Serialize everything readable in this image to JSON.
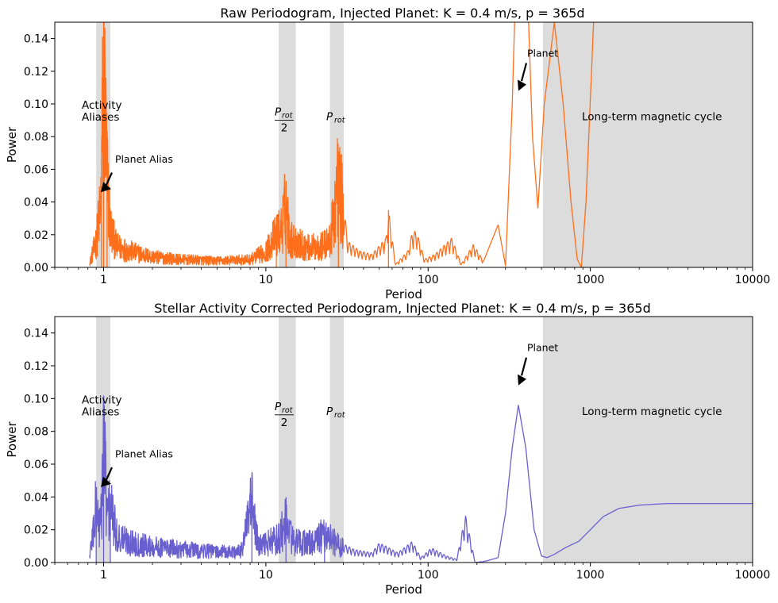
{
  "chart_data": [
    {
      "type": "line",
      "title": "Raw Periodogram, Injected Planet: K = 0.4 m/s, p = 365d",
      "xlabel": "Period",
      "ylabel": "Power",
      "xscale": "log",
      "xlim": [
        0.5,
        10000
      ],
      "ylim": [
        0,
        0.15
      ],
      "grid": false,
      "xticks": [
        "1",
        "10",
        "100",
        "1000",
        "10000"
      ],
      "yticks": [
        "0.00",
        "0.02",
        "0.04",
        "0.06",
        "0.08",
        "0.10",
        "0.12",
        "0.14"
      ],
      "color": "#ff6e1a",
      "shaded_bands": [
        [
          0.9,
          1.1
        ],
        [
          12,
          15.3
        ],
        [
          24.8,
          30.2
        ],
        [
          510,
          10000
        ]
      ],
      "annotations": {
        "activity_aliases": [
          "Activity",
          "Aliases"
        ],
        "p_rot_half": {
          "p": "P",
          "rot": "rot",
          "den": "2"
        },
        "p_rot": {
          "p": "P",
          "rot": "rot"
        },
        "planet": "Planet",
        "planet_alias": "Planet Alias",
        "long_term": "Long-term magnetic cycle"
      },
      "series": [
        {
          "x": [
            0.82,
            0.9,
            0.96,
            1.0,
            1.05,
            1.1,
            1.2,
            1.4,
            1.7,
            2.0,
            3.0,
            5.0,
            8.0,
            10.0,
            11.0,
            12.6,
            13.3,
            14.0,
            18.0,
            22.0,
            25.0,
            28.0,
            32.0,
            38.0,
            45.0,
            55.0,
            57.0,
            63.0,
            75.0,
            80.0,
            85.0,
            95.0,
            110.0,
            140.0,
            160.0,
            190.0,
            220.0,
            270.0,
            300.0,
            330.0,
            365.0,
            400.0,
            440.0,
            475.0,
            520.0,
            600.0,
            680.0,
            760.0,
            830.0,
            880.0,
            940.0,
            1100.0
          ],
          "y": [
            0.003,
            0.02,
            0.047,
            0.15,
            0.069,
            0.03,
            0.016,
            0.013,
            0.01,
            0.008,
            0.006,
            0.005,
            0.006,
            0.012,
            0.021,
            0.03,
            0.05,
            0.022,
            0.015,
            0.016,
            0.02,
            0.068,
            0.016,
            0.01,
            0.008,
            0.018,
            0.035,
            0.002,
            0.01,
            0.022,
            0.022,
            0.005,
            0.008,
            0.018,
            0.002,
            0.014,
            0.004,
            0.026,
            0.001,
            0.1,
            0.25,
            0.2,
            0.08,
            0.036,
            0.1,
            0.15,
            0.1,
            0.04,
            0.005,
            0.0,
            0.04,
            0.2
          ]
        }
      ]
    },
    {
      "type": "line",
      "title": "Stellar Activity Corrected Periodogram, Injected Planet: K = 0.4 m/s, p = 365d",
      "xlabel": "Period",
      "ylabel": "Power",
      "xscale": "log",
      "xlim": [
        0.5,
        10000
      ],
      "ylim": [
        0,
        0.15
      ],
      "grid": false,
      "xticks": [
        "1",
        "10",
        "100",
        "1000",
        "10000"
      ],
      "yticks": [
        "0.00",
        "0.02",
        "0.04",
        "0.06",
        "0.08",
        "0.10",
        "0.12",
        "0.14"
      ],
      "color": "#6a5fcf",
      "shaded_bands": [
        [
          0.9,
          1.1
        ],
        [
          12,
          15.3
        ],
        [
          24.8,
          30.2
        ],
        [
          510,
          10000
        ]
      ],
      "annotations": {
        "activity_aliases": [
          "Activity",
          "Aliases"
        ],
        "p_rot_half": {
          "p": "P",
          "rot": "rot",
          "den": "2"
        },
        "p_rot": {
          "p": "P",
          "rot": "rot"
        },
        "planet": "Planet",
        "planet_alias": "Planet Alias",
        "long_term": "Long-term magnetic cycle"
      },
      "series": [
        {
          "x": [
            0.82,
            0.9,
            0.96,
            1.0,
            1.05,
            1.1,
            1.2,
            1.5,
            2.0,
            3.0,
            5.0,
            7.0,
            8.2,
            9.0,
            12.0,
            13.3,
            15.0,
            20.0,
            23.0,
            28.0,
            35.0,
            45.0,
            50.0,
            55.0,
            65.0,
            80.0,
            90.0,
            105.0,
            130.0,
            150.0,
            170.0,
            195.0,
            230.0,
            270.0,
            300.0,
            330.0,
            360.0,
            400.0,
            450.0,
            500.0,
            540.0,
            600.0,
            700.0,
            850.0,
            1000.0,
            1200.0,
            1500.0,
            2000.0,
            3000.0,
            5000.0,
            10000.0
          ],
          "y": [
            0.005,
            0.041,
            0.025,
            0.096,
            0.035,
            0.042,
            0.02,
            0.015,
            0.012,
            0.01,
            0.008,
            0.008,
            0.043,
            0.012,
            0.018,
            0.03,
            0.015,
            0.015,
            0.022,
            0.013,
            0.008,
            0.006,
            0.012,
            0.01,
            0.006,
            0.013,
            0.003,
            0.009,
            0.004,
            0.002,
            0.029,
            0.0,
            0.001,
            0.003,
            0.03,
            0.07,
            0.096,
            0.07,
            0.02,
            0.004,
            0.003,
            0.005,
            0.009,
            0.013,
            0.02,
            0.028,
            0.033,
            0.035,
            0.036,
            0.036,
            0.036
          ]
        }
      ]
    }
  ]
}
